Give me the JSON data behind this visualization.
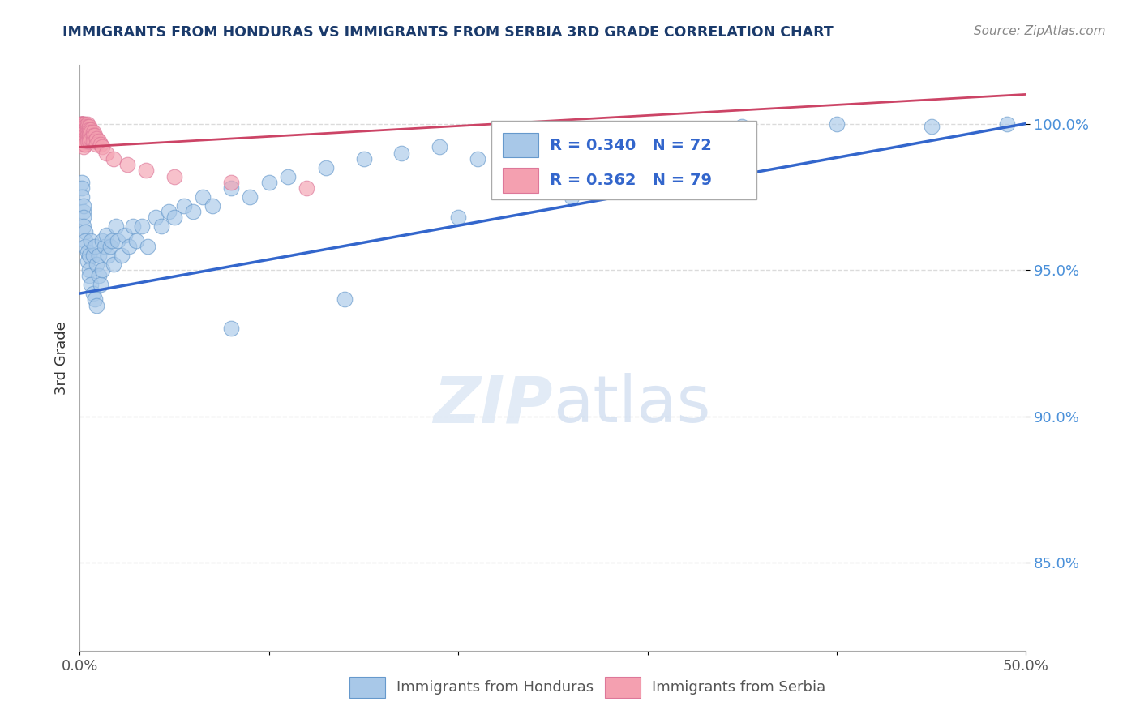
{
  "title": "IMMIGRANTS FROM HONDURAS VS IMMIGRANTS FROM SERBIA 3RD GRADE CORRELATION CHART",
  "source": "Source: ZipAtlas.com",
  "ylabel": "3rd Grade",
  "xlim": [
    0.0,
    0.5
  ],
  "ylim": [
    0.82,
    1.02
  ],
  "xticks": [
    0.0,
    0.1,
    0.2,
    0.3,
    0.4,
    0.5
  ],
  "xticklabels": [
    "0.0%",
    "",
    "",
    "",
    "",
    "50.0%"
  ],
  "yticks": [
    0.85,
    0.9,
    0.95,
    1.0
  ],
  "yticklabels": [
    "85.0%",
    "90.0%",
    "95.0%",
    "100.0%"
  ],
  "grid_color": "#cccccc",
  "background_color": "#ffffff",
  "honduras_color": "#a8c8e8",
  "serbia_color": "#f4a0b0",
  "honduras_edge_color": "#6699cc",
  "serbia_edge_color": "#dd7799",
  "honduras_R": 0.34,
  "honduras_N": 72,
  "serbia_R": 0.362,
  "serbia_N": 79,
  "honduras_line_color": "#3366cc",
  "serbia_line_color": "#cc4466",
  "title_color": "#1a3a6b",
  "legend_color": "#3366cc",
  "honduras_x": [
    0.001,
    0.001,
    0.001,
    0.002,
    0.002,
    0.002,
    0.002,
    0.003,
    0.003,
    0.003,
    0.004,
    0.004,
    0.005,
    0.005,
    0.005,
    0.006,
    0.006,
    0.007,
    0.007,
    0.008,
    0.008,
    0.009,
    0.009,
    0.01,
    0.01,
    0.011,
    0.012,
    0.012,
    0.013,
    0.014,
    0.015,
    0.016,
    0.017,
    0.018,
    0.019,
    0.02,
    0.022,
    0.024,
    0.026,
    0.028,
    0.03,
    0.033,
    0.036,
    0.04,
    0.043,
    0.047,
    0.05,
    0.055,
    0.06,
    0.065,
    0.07,
    0.08,
    0.09,
    0.1,
    0.11,
    0.13,
    0.15,
    0.17,
    0.19,
    0.21,
    0.24,
    0.27,
    0.3,
    0.35,
    0.4,
    0.45,
    0.49,
    0.08,
    0.14,
    0.2,
    0.26,
    0.32
  ],
  "honduras_y": [
    0.98,
    0.978,
    0.975,
    0.97,
    0.972,
    0.968,
    0.965,
    0.963,
    0.96,
    0.958,
    0.956,
    0.953,
    0.95,
    0.955,
    0.948,
    0.96,
    0.945,
    0.955,
    0.942,
    0.958,
    0.94,
    0.952,
    0.938,
    0.948,
    0.955,
    0.945,
    0.96,
    0.95,
    0.958,
    0.962,
    0.955,
    0.958,
    0.96,
    0.952,
    0.965,
    0.96,
    0.955,
    0.962,
    0.958,
    0.965,
    0.96,
    0.965,
    0.958,
    0.968,
    0.965,
    0.97,
    0.968,
    0.972,
    0.97,
    0.975,
    0.972,
    0.978,
    0.975,
    0.98,
    0.982,
    0.985,
    0.988,
    0.99,
    0.992,
    0.988,
    0.995,
    0.996,
    0.998,
    0.999,
    1.0,
    0.999,
    1.0,
    0.93,
    0.94,
    0.968,
    0.975,
    0.985
  ],
  "serbia_x": [
    0.001,
    0.001,
    0.001,
    0.001,
    0.001,
    0.001,
    0.001,
    0.001,
    0.001,
    0.001,
    0.001,
    0.001,
    0.001,
    0.001,
    0.001,
    0.001,
    0.001,
    0.001,
    0.002,
    0.002,
    0.002,
    0.002,
    0.002,
    0.002,
    0.002,
    0.002,
    0.002,
    0.002,
    0.002,
    0.002,
    0.002,
    0.002,
    0.002,
    0.002,
    0.002,
    0.003,
    0.003,
    0.003,
    0.003,
    0.003,
    0.003,
    0.003,
    0.003,
    0.003,
    0.003,
    0.003,
    0.004,
    0.004,
    0.004,
    0.004,
    0.004,
    0.004,
    0.004,
    0.005,
    0.005,
    0.005,
    0.005,
    0.005,
    0.005,
    0.006,
    0.006,
    0.006,
    0.007,
    0.007,
    0.007,
    0.008,
    0.008,
    0.009,
    0.009,
    0.01,
    0.011,
    0.012,
    0.014,
    0.018,
    0.025,
    0.035,
    0.05,
    0.08,
    0.12
  ],
  "serbia_y": [
    1.0,
    1.0,
    1.0,
    1.0,
    1.0,
    1.0,
    1.0,
    0.999,
    0.999,
    0.999,
    0.999,
    0.998,
    0.998,
    0.998,
    0.997,
    0.997,
    0.997,
    0.996,
    1.0,
    1.0,
    0.999,
    0.999,
    0.999,
    0.998,
    0.998,
    0.997,
    0.997,
    0.996,
    0.996,
    0.995,
    0.995,
    0.994,
    0.994,
    0.993,
    0.992,
    1.0,
    0.999,
    0.999,
    0.998,
    0.998,
    0.997,
    0.997,
    0.996,
    0.995,
    0.994,
    0.993,
    1.0,
    0.999,
    0.998,
    0.997,
    0.996,
    0.995,
    0.994,
    0.999,
    0.998,
    0.997,
    0.996,
    0.995,
    0.994,
    0.998,
    0.997,
    0.995,
    0.997,
    0.996,
    0.994,
    0.996,
    0.994,
    0.995,
    0.993,
    0.994,
    0.993,
    0.992,
    0.99,
    0.988,
    0.986,
    0.984,
    0.982,
    0.98,
    0.978
  ],
  "honduras_line_x": [
    0.0,
    0.5
  ],
  "honduras_line_y": [
    0.942,
    1.0
  ],
  "serbia_line_x": [
    0.0,
    0.5
  ],
  "serbia_line_y": [
    0.992,
    1.01
  ]
}
